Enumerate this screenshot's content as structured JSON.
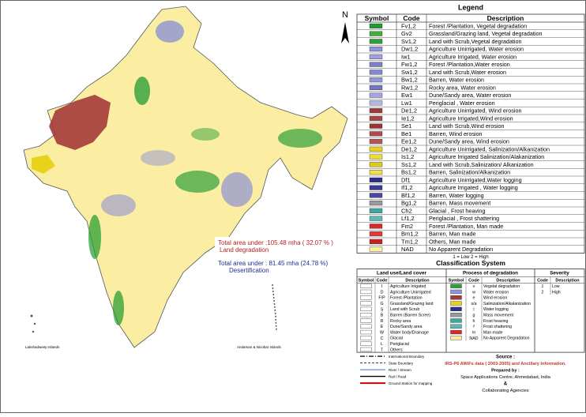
{
  "map": {
    "north_label": "N",
    "annotations": [
      {
        "text": "Total  area under :105.48 mha ( 32.07 % )",
        "color": "#b22222"
      },
      {
        "text": "Land degradation",
        "color": "#b22222"
      },
      {
        "text": "Total area under   :  81.45 mha  (24.78 %)",
        "color": "#1f2f8f"
      },
      {
        "text": "Desertification",
        "color": "#1f2f8f"
      }
    ],
    "islands": [
      "Lakshadweep Islands",
      "Andaman & Nicobar Islands"
    ]
  },
  "legend": {
    "title": "Legend",
    "headers": [
      "Symbol",
      "Code",
      "Description"
    ],
    "rows": [
      {
        "code": "Fv1,2",
        "description": "Forest /Plantation, Vegetal degradation",
        "color": "#1e9b2e"
      },
      {
        "code": "Gv2",
        "description": "Grassland/Grazing land, Vegetal degradation",
        "color": "#3fae3a"
      },
      {
        "code": "Sv1,2",
        "description": "Land with Scrub,Vegetal degradation",
        "color": "#2f9f3c"
      },
      {
        "code": "Dw1,2",
        "description": "Agriculture Unirrigated, Water erosion",
        "color": "#8f92d6"
      },
      {
        "code": "Iw1",
        "description": "Agriculture Irrigated, Water erosion",
        "color": "#9da0dc"
      },
      {
        "code": "Fw1,2",
        "description": "Forest /Plantation,Water erosion",
        "color": "#7c80cc"
      },
      {
        "code": "Sw1,2",
        "description": "Land with Scrub,Water erosion",
        "color": "#8589d0"
      },
      {
        "code": "Bw1,2",
        "description": "Barren,  Water erosion",
        "color": "#9497d8"
      },
      {
        "code": "Rw1,2",
        "description": "Rocky area, Water erosion",
        "color": "#7075c4"
      },
      {
        "code": "Ew1",
        "description": "Dune/Sandy area, Water erosion",
        "color": "#a3a6e0"
      },
      {
        "code": "Lw1",
        "description": "Periglacial , Water erosion",
        "color": "#b4b6e6"
      },
      {
        "code": "De1,2",
        "description": "Agriculture Unirrigated, Wind erosion",
        "color": "#a33a3a"
      },
      {
        "code": "Ie1,2",
        "description": "Agriculture Irrigated,Wind erosion",
        "color": "#a84444"
      },
      {
        "code": "Se1",
        "description": "Land with Scrub,Wind erosion",
        "color": "#9c3434"
      },
      {
        "code": "Be1",
        "description": "Barren, Wind erosion",
        "color": "#b04a4a"
      },
      {
        "code": "Ee1,2",
        "description": "Dune/Sandy area, Wind erosion",
        "color": "#b85656"
      },
      {
        "code": "De1,2",
        "description": "Agriculture Unirrigated, Salinization/Alkanization",
        "color": "#e8d21a"
      },
      {
        "code": "Is1,2",
        "description": "Agriculture Irrigated Salinization/Alakanization",
        "color": "#efdc30"
      },
      {
        "code": "Ss1,2",
        "description": "Land with Scrub,Salinization/ Alkanization",
        "color": "#e0ca14"
      },
      {
        "code": "Bs1,2",
        "description": "Barren,  Salinization/Alkanization",
        "color": "#f2e24a"
      },
      {
        "code": "Df1",
        "description": "Agriculture Unirrigated,Water logging",
        "color": "#2e2e8c"
      },
      {
        "code": "If1,2",
        "description": "Agriculture Irrigated , Water logging",
        "color": "#3a3a98"
      },
      {
        "code": "Bf1,2",
        "description": "Barren, Water logging",
        "color": "#4848a4"
      },
      {
        "code": "Bg1,2",
        "description": "Barren, Mass movement",
        "color": "#9a9a9a"
      },
      {
        "code": "Ch2",
        "description": "Glacial ,  Frost heaving",
        "color": "#3fa7a0"
      },
      {
        "code": "Lf1,2",
        "description": "Periglacial , Frost shattering",
        "color": "#5cbab2"
      },
      {
        "code": "Fm2",
        "description": "Forest /Plantation, Man made",
        "color": "#d52b2b"
      },
      {
        "code": "Bm1,2",
        "description": "Barren, Man made",
        "color": "#e03a3a"
      },
      {
        "code": "Tm1,2",
        "description": "Others, Man made",
        "color": "#c92020"
      },
      {
        "code": "NAD",
        "description": "No Apparent Degradation",
        "color": "#fbeea2"
      }
    ],
    "severity_note": "1 = Low    2 = High"
  },
  "classification": {
    "title": "Classification System",
    "land_use": {
      "title": "Land use/Land cover",
      "headers": [
        "Symbol",
        "Code",
        "Description"
      ],
      "rows": [
        {
          "code": "I",
          "description": "Agriculture Irrigated"
        },
        {
          "code": "D",
          "description": "Agriculture Unirrigated"
        },
        {
          "code": "F/P",
          "description": "Forest /Plantation"
        },
        {
          "code": "G",
          "description": "Grassland/Grazing land"
        },
        {
          "code": "S",
          "description": "Land with Scrub"
        },
        {
          "code": "B",
          "description": "Barren (Barren Scree)"
        },
        {
          "code": "R",
          "description": "Rocky area"
        },
        {
          "code": "E",
          "description": "Dune/Sandy area"
        },
        {
          "code": "W",
          "description": "Water body/Drainage"
        },
        {
          "code": "C",
          "description": "Glacial"
        },
        {
          "code": "L",
          "description": "Periglacial"
        },
        {
          "code": "T",
          "description": "Others"
        }
      ]
    },
    "process": {
      "title": "Process of degradation",
      "headers": [
        "Symbol",
        "Code",
        "Description"
      ],
      "rows": [
        {
          "code": "v",
          "description": "Vegetal degradation",
          "color": "#2f9f3c"
        },
        {
          "code": "w",
          "description": "Water erosion",
          "color": "#8f92d6"
        },
        {
          "code": "e",
          "description": "Wind erosion",
          "color": "#a33a3a"
        },
        {
          "code": "s/a",
          "description": "Salinization/Alkalanization",
          "color": "#e8d21a"
        },
        {
          "code": "l",
          "description": "Water logging",
          "color": "#2e2e8c"
        },
        {
          "code": "g",
          "description": "Mass movement",
          "color": "#9a9a9a"
        },
        {
          "code": "h",
          "description": "Frost heaving",
          "color": "#3fa7a0"
        },
        {
          "code": "f",
          "description": "Frost shattering",
          "color": "#5cbab2"
        },
        {
          "code": "m",
          "description": "Man made",
          "color": "#d52b2b"
        },
        {
          "code": "NAD",
          "description": "No Apparent Degradation",
          "color": "#fbeea2"
        }
      ]
    },
    "severity": {
      "title": "Severity",
      "headers": [
        "Code",
        "Description"
      ],
      "rows": [
        {
          "code": "1",
          "description": "Low"
        },
        {
          "code": "2",
          "description": "High"
        }
      ]
    }
  },
  "boundaries": [
    "International Boundary",
    "State Boundary",
    "River / Stream",
    "Rail / Road",
    "Ground Station for mapping"
  ],
  "source": {
    "label": "Source :",
    "text": "IRS-P6 AWiFs data ( 2003-2005) and Ancillary Information.",
    "prepared_label": "Prepared by :",
    "prepared_by": "Space Applications Centre, Ahmedabad, India",
    "amp": "&",
    "collaborators": "Collaborating Agencies"
  }
}
